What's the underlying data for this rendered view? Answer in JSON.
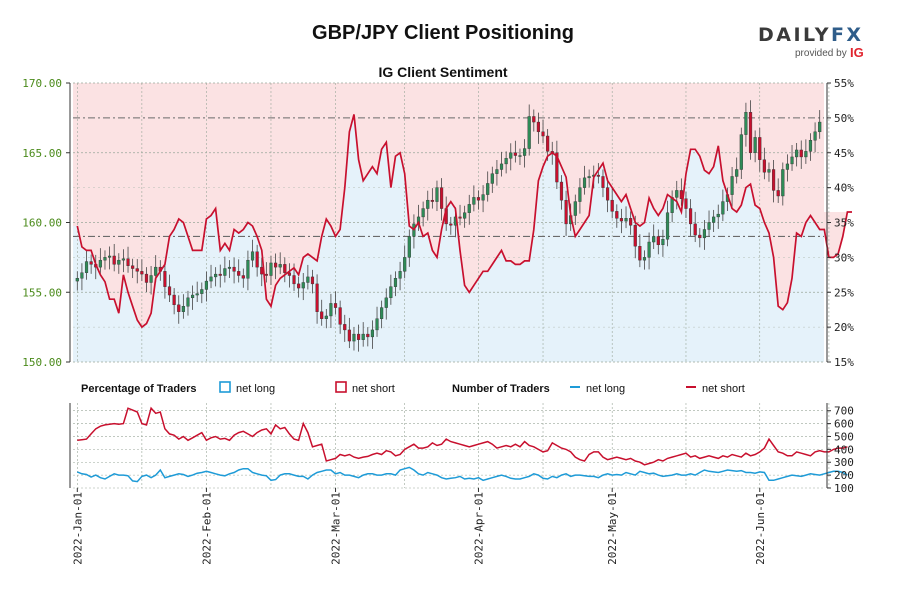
{
  "title": "GBP/JPY Client Positioning",
  "subtitle": "IG Client Sentiment",
  "brand": {
    "name_left": "DAILY",
    "name_right": "FX",
    "provided_by": "provided by",
    "ig": "IG"
  },
  "colors": {
    "up_candle": "#2e8b57",
    "down_candle": "#c8102e",
    "net_long_line": "#1e9bd7",
    "net_short_line": "#c8102e",
    "long_zone": "#e5f2fa",
    "short_zone": "#fbe2e3",
    "left_axis_text": "#4a8a1a"
  },
  "legend": {
    "percentage_heading": "Percentage of Traders",
    "pct_long": "net long",
    "pct_short": "net short",
    "number_heading": "Number of Traders",
    "num_long": "net long",
    "num_short": "net short"
  },
  "chart_data": [
    {
      "type": "candlestick",
      "title": "IG Client Sentiment",
      "ylim": [
        150,
        170
      ],
      "y_ticks": [
        "150.00",
        "155.00",
        "160.00",
        "165.00",
        "170.00"
      ],
      "y2lim": [
        15,
        55
      ],
      "y2_ticks": [
        "15%",
        "20%",
        "25%",
        "30%",
        "35%",
        "40%",
        "45%",
        "50%",
        "55%"
      ],
      "reference_lines_pct": [
        50,
        33
      ],
      "x_ticks": [
        "2022-Jan-01",
        "2022-Feb-01",
        "2022-Mar-01",
        "2022-Apr-01",
        "2022-May-01",
        "2022-Jun-01"
      ],
      "close": [
        156.0,
        156.4,
        157.2,
        157.0,
        156.8,
        157.3,
        157.5,
        157.6,
        157.0,
        157.3,
        157.4,
        156.9,
        156.7,
        156.5,
        156.3,
        155.7,
        156.2,
        156.8,
        156.5,
        155.4,
        154.8,
        154.1,
        153.6,
        154.0,
        154.6,
        154.8,
        154.9,
        155.2,
        155.8,
        156.1,
        156.3,
        156.2,
        156.7,
        156.8,
        156.5,
        156.2,
        156.0,
        157.3,
        157.9,
        156.8,
        156.3,
        156.2,
        157.1,
        156.8,
        157.0,
        156.4,
        156.2,
        155.6,
        155.3,
        155.7,
        156.1,
        155.6,
        153.6,
        153.1,
        153.3,
        154.2,
        153.9,
        152.7,
        152.3,
        151.5,
        152.0,
        151.6,
        152.0,
        151.8,
        152.3,
        153.1,
        153.9,
        154.6,
        155.4,
        156.0,
        156.5,
        157.5,
        159.0,
        159.9,
        160.4,
        161.0,
        161.6,
        161.5,
        162.5,
        161.0,
        159.9,
        159.8,
        160.4,
        160.3,
        160.7,
        161.3,
        161.8,
        161.6,
        162.0,
        162.8,
        163.5,
        163.8,
        164.2,
        164.6,
        165.0,
        164.8,
        164.8,
        165.3,
        167.6,
        167.2,
        166.5,
        166.2,
        165.1,
        165.0,
        162.9,
        161.6,
        159.9,
        160.5,
        161.5,
        162.5,
        163.2,
        163.3,
        163.4,
        163.3,
        162.5,
        161.6,
        160.8,
        160.3,
        160.1,
        160.3,
        159.8,
        158.3,
        157.3,
        157.5,
        158.6,
        159.0,
        158.4,
        158.8,
        160.7,
        161.8,
        162.3,
        161.7,
        161.0,
        159.9,
        159.1,
        158.9,
        159.5,
        160.0,
        160.4,
        160.6,
        161.5,
        162.0,
        163.3,
        163.8,
        166.3,
        167.9,
        165.0,
        166.1,
        164.5,
        163.6,
        163.8,
        162.3,
        161.9,
        163.8,
        164.2,
        164.7,
        165.2,
        164.7,
        165.1,
        165.9,
        166.5,
        167.2
      ],
      "open": [
        155.8,
        156.0,
        156.4,
        157.2,
        157.0,
        156.8,
        157.3,
        157.5,
        157.6,
        157.0,
        157.3,
        157.4,
        156.9,
        156.7,
        156.5,
        156.3,
        155.7,
        156.2,
        156.8,
        156.5,
        155.4,
        154.8,
        154.1,
        153.6,
        154.0,
        154.6,
        154.8,
        154.9,
        155.2,
        155.8,
        156.1,
        156.3,
        156.2,
        156.7,
        156.8,
        156.5,
        156.2,
        156.0,
        157.3,
        157.9,
        156.8,
        156.3,
        156.2,
        157.1,
        156.8,
        157.0,
        156.4,
        156.2,
        155.6,
        155.3,
        155.7,
        156.1,
        155.6,
        153.6,
        153.1,
        153.3,
        154.2,
        153.9,
        152.7,
        152.3,
        151.5,
        152.0,
        151.6,
        152.0,
        151.8,
        152.3,
        153.1,
        153.9,
        154.6,
        155.4,
        156.0,
        156.5,
        157.5,
        159.0,
        159.9,
        160.4,
        161.0,
        161.6,
        161.5,
        162.5,
        161.0,
        159.9,
        159.8,
        160.4,
        160.3,
        160.7,
        161.3,
        161.8,
        161.6,
        162.0,
        162.8,
        163.5,
        163.8,
        164.2,
        164.6,
        165.0,
        164.8,
        164.8,
        165.3,
        167.6,
        167.2,
        166.5,
        166.2,
        165.1,
        165.0,
        162.9,
        161.6,
        159.9,
        160.5,
        161.5,
        162.5,
        163.2,
        163.3,
        163.4,
        163.3,
        162.5,
        161.6,
        160.8,
        160.3,
        160.1,
        160.3,
        159.8,
        158.3,
        157.3,
        157.5,
        158.6,
        159.0,
        158.4,
        158.8,
        160.7,
        161.8,
        162.3,
        161.7,
        161.0,
        159.9,
        159.1,
        158.9,
        159.5,
        160.0,
        160.4,
        160.6,
        161.5,
        162.0,
        163.3,
        163.8,
        166.3,
        167.9,
        165.0,
        166.1,
        164.5,
        163.6,
        163.8,
        162.3,
        161.9,
        163.8,
        164.2,
        164.7,
        165.2,
        164.7,
        165.1,
        165.9,
        166.5
      ],
      "pct_short": [
        34.5,
        31.5,
        31.0,
        31.0,
        29.0,
        27.5,
        26.5,
        24.0,
        24.0,
        22.0,
        27.5,
        25.0,
        23.0,
        21.0,
        20.0,
        20.5,
        22.0,
        27.0,
        28.0,
        29.0,
        33.0,
        34.0,
        35.5,
        35.0,
        33.0,
        31.0,
        31.0,
        31.0,
        35.5,
        36.0,
        37.0,
        31.0,
        32.0,
        31.0,
        34.0,
        33.5,
        34.0,
        35.0,
        34.5,
        33.0,
        31.0,
        24.0,
        23.0,
        26.0,
        27.0,
        27.5,
        28.0,
        28.5,
        27.5,
        30.0,
        30.5,
        30.0,
        29.5,
        33.0,
        35.5,
        34.5,
        33.0,
        34.0,
        40.0,
        48.0,
        50.5,
        44.0,
        41.0,
        42.0,
        43.0,
        42.0,
        45.5,
        46.5,
        40.0,
        44.5,
        45.0,
        42.0,
        34.5,
        34.0,
        35.0,
        33.0,
        33.5,
        31.0,
        30.0,
        34.0,
        37.0,
        38.0,
        37.0,
        31.0,
        26.0,
        25.0,
        26.0,
        27.0,
        28.0,
        28.0,
        29.0,
        30.0,
        31.0,
        29.5,
        29.5,
        29.0,
        29.0,
        29.5,
        29.5,
        34.0,
        41.0,
        43.0,
        44.5,
        45.0,
        44.5,
        43.0,
        41.5,
        36.0,
        33.0,
        34.0,
        35.0,
        36.0,
        41.5,
        42.5,
        43.5,
        41.0,
        40.0,
        39.0,
        38.0,
        39.0,
        37.0,
        35.0,
        34.5,
        35.0,
        38.5,
        37.0,
        36.0,
        37.0,
        39.0,
        38.5,
        38.0,
        36.5,
        42.0,
        45.5,
        45.5,
        44.5,
        42.5,
        42.0,
        43.0,
        46.0,
        41.0,
        39.0,
        37.0,
        36.5,
        37.5,
        40.0,
        40.5,
        37.5,
        37.0,
        35.0,
        33.5,
        30.0,
        23.0,
        22.5,
        23.5,
        27.0,
        33.5,
        33.0,
        35.0,
        36.0,
        35.0,
        34.0,
        34.0,
        30.0,
        30.0,
        30.5,
        33.0,
        36.5,
        36.5
      ],
      "name_price": "GBP/JPY",
      "name_pct": "net short"
    },
    {
      "type": "line",
      "ylim": [
        100,
        760
      ],
      "y_ticks": [
        "100",
        "200",
        "300",
        "400",
        "500",
        "600",
        "700"
      ],
      "x_ticks": [
        "2022-Jan-01",
        "2022-Feb-01",
        "2022-Mar-01",
        "2022-Apr-01",
        "2022-May-01",
        "2022-Jun-01"
      ],
      "series": [
        {
          "name": "net short",
          "values": [
            470,
            475,
            480,
            520,
            560,
            580,
            590,
            595,
            600,
            595,
            600,
            720,
            705,
            690,
            600,
            590,
            720,
            680,
            690,
            560,
            520,
            510,
            480,
            500,
            470,
            490,
            510,
            530,
            470,
            490,
            500,
            480,
            485,
            470,
            510,
            530,
            540,
            520,
            500,
            530,
            550,
            560,
            520,
            590,
            560,
            570,
            520,
            480,
            470,
            600,
            530,
            420,
            430,
            440,
            310,
            320,
            330,
            360,
            350,
            360,
            340,
            330,
            340,
            345,
            360,
            370,
            360,
            390,
            380,
            350,
            360,
            400,
            420,
            440,
            410,
            410,
            420,
            450,
            430,
            440,
            480,
            460,
            450,
            440,
            430,
            420,
            430,
            440,
            450,
            460,
            440,
            410,
            420,
            430,
            420,
            440,
            420,
            460,
            430,
            420,
            400,
            380,
            390,
            450,
            430,
            410,
            400,
            380,
            340,
            320,
            310,
            360,
            380,
            380,
            340,
            320,
            330,
            340,
            330,
            320,
            330,
            310,
            300,
            280,
            290,
            300,
            320,
            310,
            330,
            340,
            350,
            360,
            370,
            340,
            350,
            330,
            340,
            350,
            340,
            330,
            350,
            340,
            360,
            350,
            340,
            370,
            350,
            360,
            380,
            410,
            480,
            430,
            380,
            370,
            350,
            350,
            380,
            370,
            360,
            350,
            380,
            390,
            380,
            380,
            400,
            410,
            410,
            420
          ]
        },
        {
          "name": "net long",
          "values": [
            225,
            210,
            205,
            185,
            200,
            180,
            170,
            190,
            210,
            200,
            200,
            195,
            155,
            150,
            190,
            200,
            180,
            200,
            240,
            180,
            190,
            200,
            210,
            205,
            190,
            200,
            215,
            220,
            230,
            220,
            210,
            200,
            195,
            210,
            220,
            240,
            250,
            250,
            220,
            210,
            200,
            195,
            160,
            165,
            200,
            210,
            210,
            200,
            190,
            190,
            170,
            200,
            220,
            230,
            240,
            240,
            210,
            220,
            200,
            200,
            190,
            180,
            200,
            210,
            210,
            200,
            200,
            210,
            210,
            200,
            240,
            250,
            260,
            240,
            210,
            200,
            220,
            210,
            200,
            180,
            170,
            175,
            180,
            190,
            170,
            175,
            170,
            180,
            160,
            170,
            180,
            190,
            200,
            190,
            175,
            170,
            170,
            180,
            190,
            210,
            200,
            175,
            170,
            190,
            180,
            200,
            210,
            190,
            200,
            200,
            195,
            190,
            190,
            180,
            200,
            210,
            200,
            205,
            200,
            220,
            210,
            200,
            230,
            220,
            210,
            215,
            200,
            190,
            195,
            200,
            210,
            200,
            200,
            210,
            200,
            220,
            240,
            230,
            225,
            220,
            230,
            240,
            235,
            230,
            235,
            220,
            220,
            215,
            225,
            220,
            160,
            160,
            170,
            180,
            190,
            200,
            195,
            190,
            200,
            210,
            205,
            200,
            210,
            220,
            230,
            230,
            220,
            200
          ]
        }
      ]
    }
  ]
}
